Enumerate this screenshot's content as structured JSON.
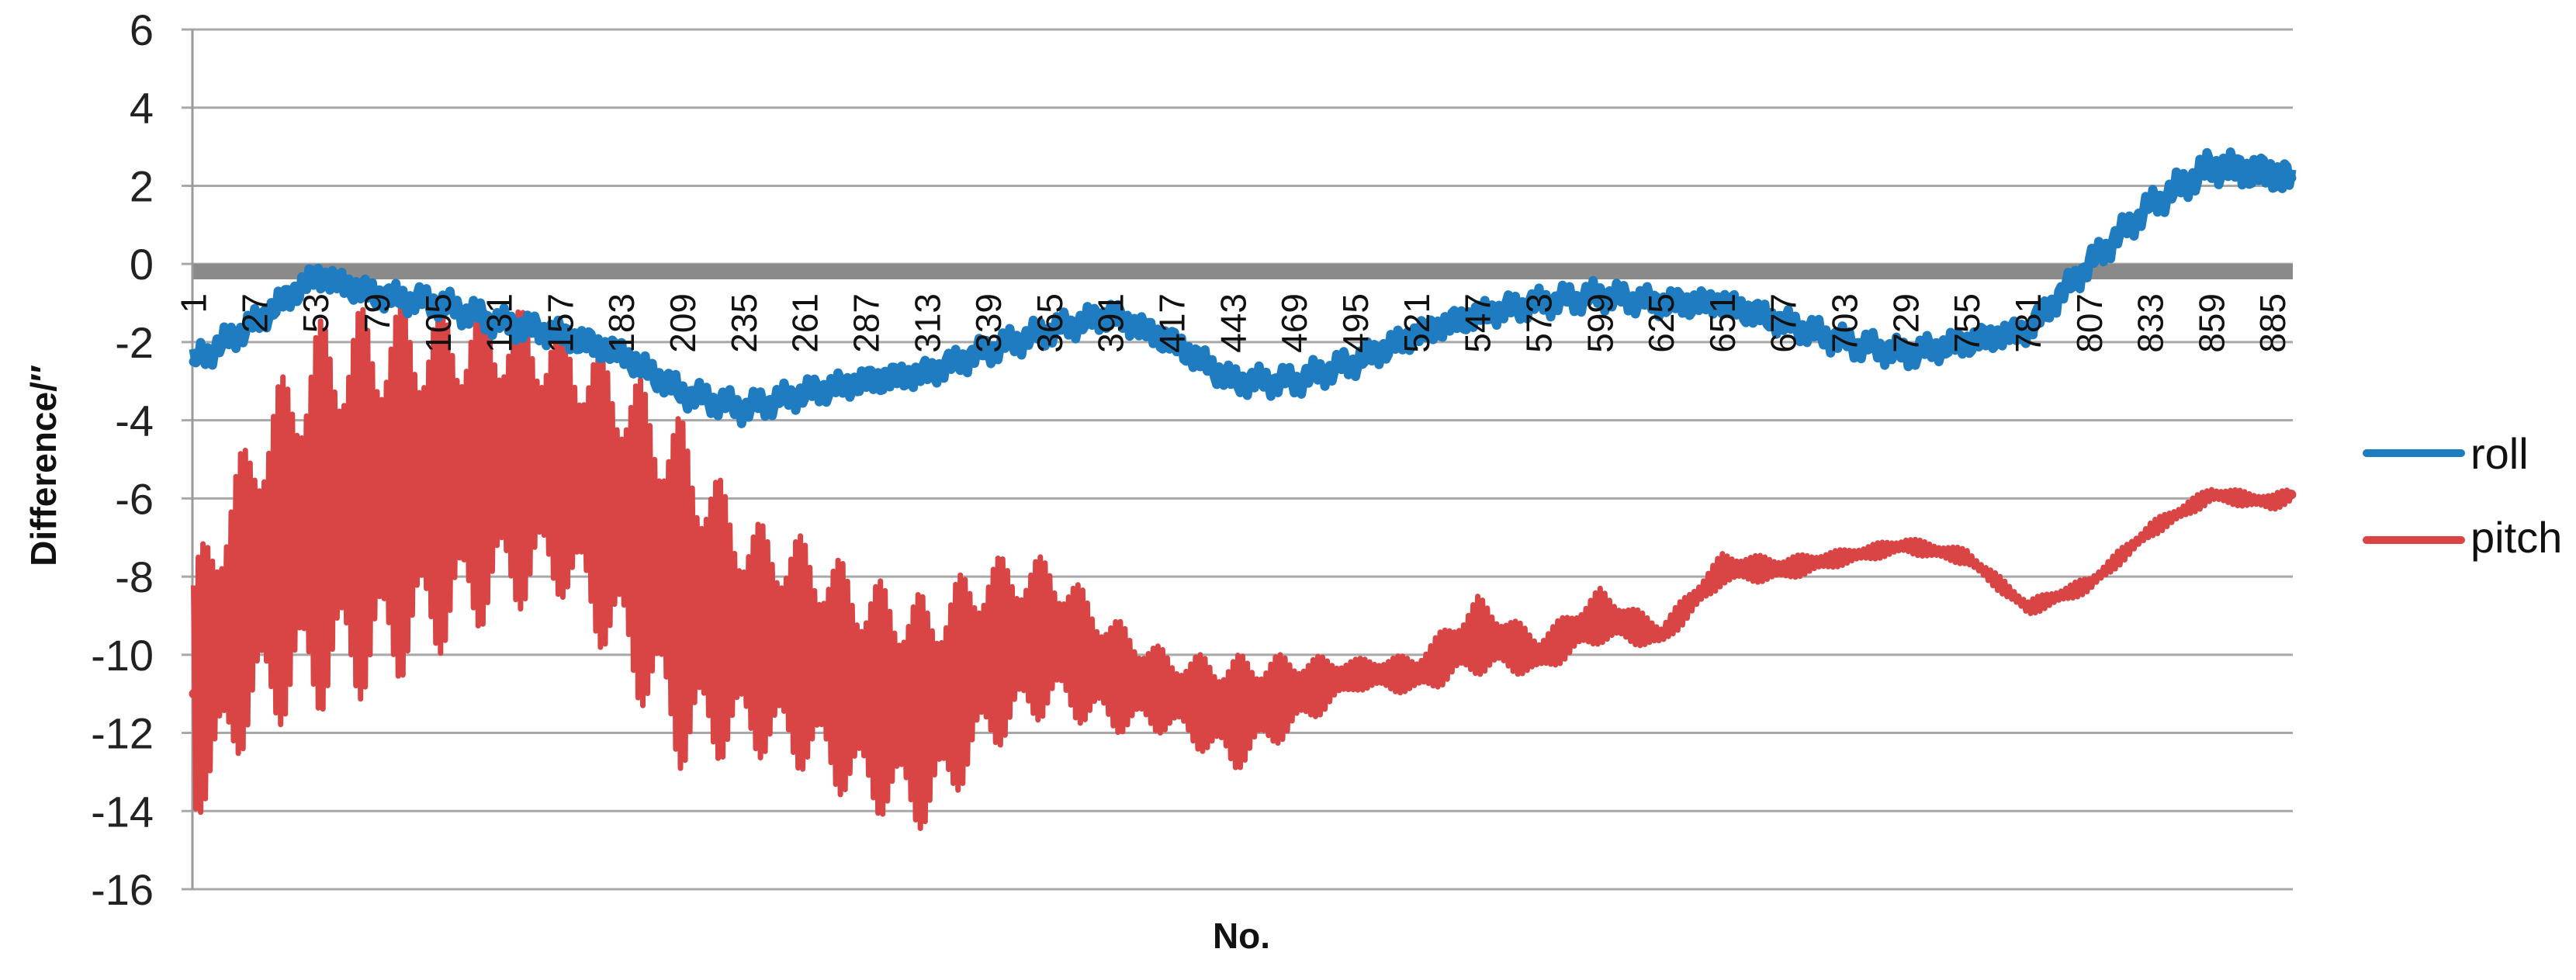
{
  "chart_data": {
    "type": "line",
    "title": "",
    "xlabel": "No.",
    "ylabel": "Difference/″",
    "ylim": [
      -16,
      6
    ],
    "yticks": [
      6,
      4,
      2,
      0,
      -2,
      -4,
      -6,
      -8,
      -10,
      -12,
      -14,
      -16
    ],
    "x_count": 893,
    "xticks": [
      1,
      27,
      53,
      79,
      105,
      131,
      157,
      183,
      209,
      235,
      261,
      287,
      313,
      339,
      365,
      391,
      417,
      443,
      469,
      495,
      521,
      547,
      573,
      599,
      625,
      651,
      677,
      703,
      729,
      755,
      781,
      807,
      833,
      859,
      885
    ],
    "grid": "horizontal",
    "legend_position": "right",
    "sample_x": [
      1,
      27,
      53,
      79,
      105,
      131,
      157,
      183,
      209,
      235,
      261,
      287,
      313,
      339,
      365,
      391,
      417,
      443,
      469,
      495,
      521,
      547,
      573,
      599,
      625,
      651,
      677,
      703,
      729,
      755,
      781,
      807,
      833,
      859,
      885,
      893
    ],
    "series": [
      {
        "name": "roll",
        "color": "#1f7cc1",
        "values": [
          -2.5,
          -1.5,
          -0.3,
          -0.8,
          -1.0,
          -1.5,
          -1.8,
          -2.3,
          -3.3,
          -3.7,
          -3.3,
          -3.0,
          -2.8,
          -2.2,
          -1.7,
          -1.3,
          -2.0,
          -3.0,
          -3.0,
          -2.5,
          -1.8,
          -1.3,
          -1.0,
          -0.8,
          -1.0,
          -1.0,
          -1.5,
          -2.0,
          -2.3,
          -2.0,
          -1.7,
          0.0,
          1.5,
          2.5,
          2.3,
          2.2
        ],
        "oscillation_amplitude": [
          0.4,
          0.4,
          0.4,
          0.4,
          0.4,
          0.4,
          0.4,
          0.4,
          0.4,
          0.4,
          0.4,
          0.4,
          0.4,
          0.4,
          0.4,
          0.4,
          0.4,
          0.4,
          0.4,
          0.4,
          0.4,
          0.4,
          0.4,
          0.4,
          0.4,
          0.4,
          0.4,
          0.4,
          0.4,
          0.4,
          0.4,
          0.4,
          0.4,
          0.5,
          0.5,
          0.5
        ]
      },
      {
        "name": "pitch",
        "color": "#d94545",
        "values": [
          -11,
          -8,
          -6.5,
          -6,
          -5.5,
          -5,
          -5,
          -6.5,
          -8.5,
          -9.5,
          -10,
          -11,
          -11.5,
          -10,
          -9.5,
          -10.5,
          -11,
          -11.5,
          -11,
          -10.5,
          -10.5,
          -9.5,
          -10,
          -9,
          -9.5,
          -7.8,
          -7.8,
          -7.5,
          -7.2,
          -7.5,
          -8.8,
          -8.2,
          -6.8,
          -5.9,
          -6.1,
          -5.9
        ],
        "oscillation_amplitude": [
          3.3,
          4,
          5,
          5,
          4.5,
          4,
          3.5,
          4,
          4.5,
          3,
          3,
          3,
          3,
          2.5,
          2,
          1.5,
          1,
          1.5,
          1,
          0.4,
          0.5,
          1,
          0.5,
          0.7,
          0.3,
          0.4,
          0.3,
          0.2,
          0.2,
          0.2,
          0.2,
          0.2,
          0.2,
          0.2,
          0.2,
          0.2
        ]
      }
    ]
  }
}
